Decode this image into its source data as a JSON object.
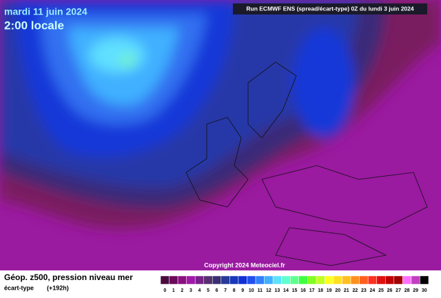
{
  "header": {
    "date": "mardi 11 juin 2024",
    "time": "2:00 locale",
    "run": "Run ECMWF ENS (spread/écart-type) 0Z du lundi 3 juin 2024"
  },
  "copyright": "Copyright 2024 Meteociel.fr",
  "footer": {
    "title": "Géop. z500, pression niveau mer",
    "subtitle": "écart-type",
    "lead": "(+192h)"
  },
  "scale": {
    "labels": [
      0,
      1,
      2,
      3,
      4,
      5,
      6,
      7,
      8,
      9,
      10,
      11,
      12,
      13,
      14,
      15,
      16,
      17,
      18,
      19,
      20,
      21,
      22,
      23,
      24,
      25,
      26,
      27,
      28,
      29,
      30
    ],
    "colors": [
      "#4a0a40",
      "#6a0a5a",
      "#8a1080",
      "#a018a8",
      "#782088",
      "#583070",
      "#383070",
      "#283a98",
      "#1838b8",
      "#1030d8",
      "#2050f0",
      "#3080ff",
      "#40b0ff",
      "#60e0ff",
      "#60ffd0",
      "#60ff90",
      "#40ff40",
      "#80ff20",
      "#c0ff20",
      "#ffff20",
      "#ffe020",
      "#ffc020",
      "#ff9020",
      "#ff6020",
      "#ff3020",
      "#e01010",
      "#c00000",
      "#a00000",
      "#ff70ff",
      "#c040c0",
      "#000000"
    ]
  }
}
